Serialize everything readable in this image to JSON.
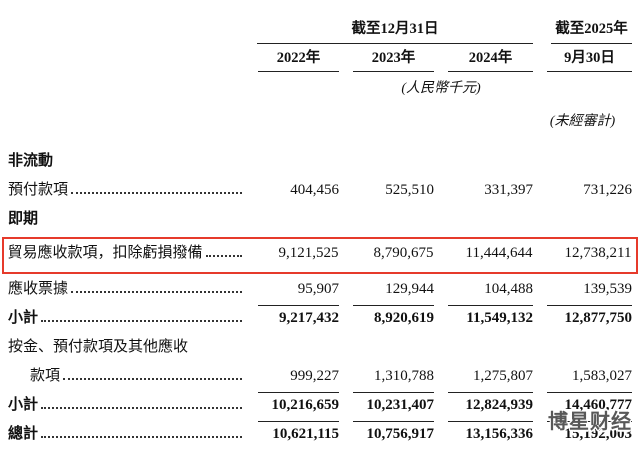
{
  "table": {
    "highlight_color": "#e63a2b",
    "header": {
      "group_dec31": "截至12月31日",
      "group_2025_line1": "截至2025年",
      "group_2025_line2": "9月30日",
      "years": [
        "2022年",
        "2023年",
        "2024年"
      ],
      "unit_note": "(人民幣千元)",
      "unaudited_note": "(未經審計)"
    },
    "rows": [
      {
        "label": "非流動",
        "section": true
      },
      {
        "label": "預付款項",
        "values": [
          "404,456",
          "525,510",
          "331,397",
          "731,226"
        ]
      },
      {
        "label": "即期",
        "section": true
      },
      {
        "label": "貿易應收款項，扣除虧損撥備",
        "values": [
          "9,121,525",
          "8,790,675",
          "11,444,644",
          "12,738,211"
        ],
        "highlight": true
      },
      {
        "label": "應收票據",
        "values": [
          "95,907",
          "129,944",
          "104,488",
          "139,539"
        ],
        "underline": true
      },
      {
        "label": "小計",
        "values": [
          "9,217,432",
          "8,920,619",
          "11,549,132",
          "12,877,750"
        ],
        "bold": true
      },
      {
        "label": "按金、預付款項及其他應收"
      },
      {
        "label": "款項",
        "indent": true,
        "values": [
          "999,227",
          "1,310,788",
          "1,275,807",
          "1,583,027"
        ],
        "underline": true
      },
      {
        "label": "小計",
        "values": [
          "10,216,659",
          "10,231,407",
          "12,824,939",
          "14,460,777"
        ],
        "bold": true,
        "underline": true
      },
      {
        "label": "總計",
        "values": [
          "10,621,115",
          "10,756,917",
          "13,156,336",
          "15,192,003"
        ],
        "bold": true,
        "double_underline": true
      }
    ],
    "watermark": "博星财经"
  }
}
